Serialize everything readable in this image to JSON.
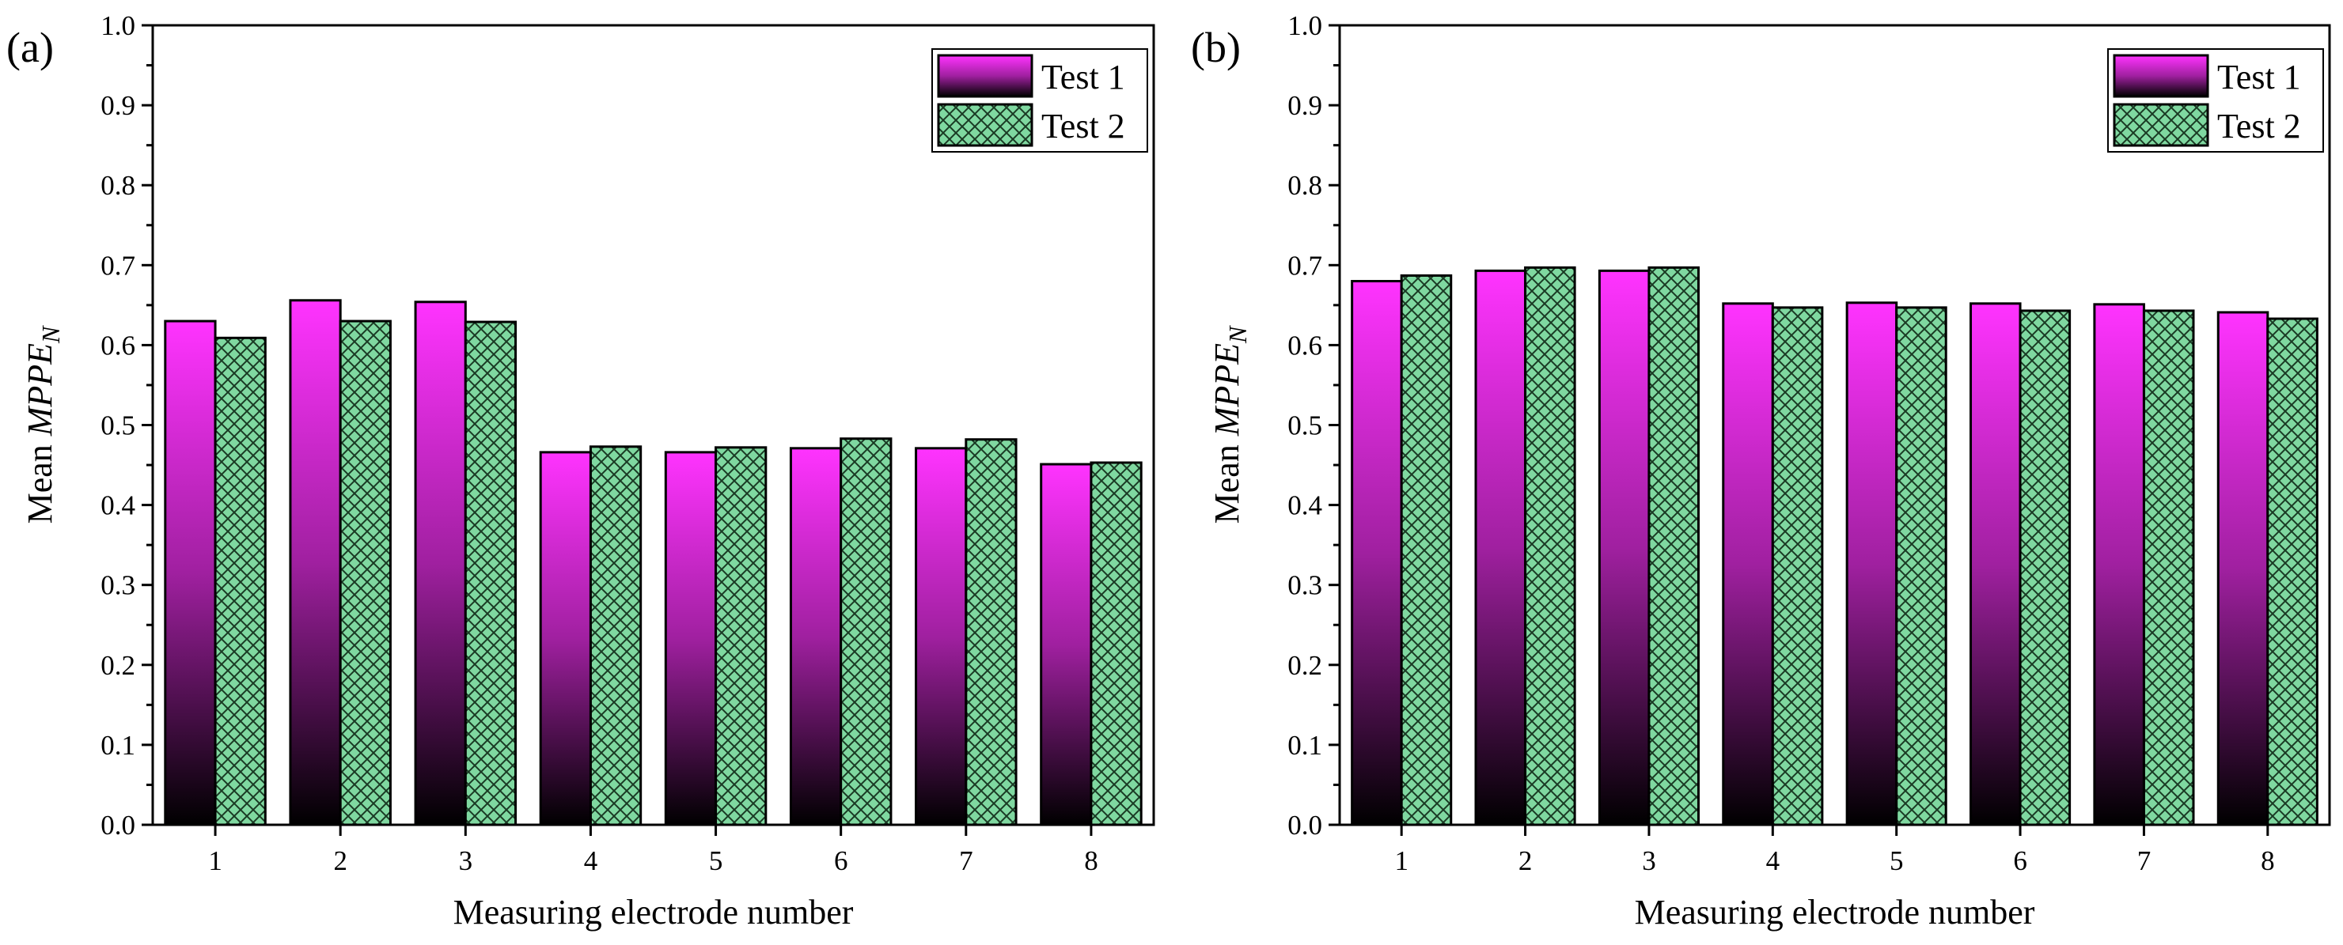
{
  "chart_data": [
    {
      "type": "bar",
      "panel_label": "(a)",
      "categories": [
        "1",
        "2",
        "3",
        "4",
        "5",
        "6",
        "7",
        "8"
      ],
      "series": [
        {
          "name": "Test 1",
          "values": [
            0.63,
            0.656,
            0.654,
            0.466,
            0.466,
            0.471,
            0.471,
            0.451
          ]
        },
        {
          "name": "Test 2",
          "values": [
            0.609,
            0.63,
            0.629,
            0.473,
            0.472,
            0.483,
            0.482,
            0.453
          ]
        }
      ],
      "xlabel": "Measuring electrode number",
      "ylabel_prefix": "Mean ",
      "ylabel_main": "MPPE",
      "ylabel_sub": "N",
      "ylim": [
        0.0,
        1.0
      ],
      "yticks": [
        "0.0",
        "0.1",
        "0.2",
        "0.3",
        "0.4",
        "0.5",
        "0.6",
        "0.7",
        "0.8",
        "0.9",
        "1.0"
      ],
      "legend_position": "top-right"
    },
    {
      "type": "bar",
      "panel_label": "(b)",
      "categories": [
        "1",
        "2",
        "3",
        "4",
        "5",
        "6",
        "7",
        "8"
      ],
      "series": [
        {
          "name": "Test 1",
          "values": [
            0.68,
            0.693,
            0.693,
            0.652,
            0.653,
            0.652,
            0.651,
            0.641
          ]
        },
        {
          "name": "Test 2",
          "values": [
            0.687,
            0.697,
            0.697,
            0.647,
            0.647,
            0.643,
            0.643,
            0.633
          ]
        }
      ],
      "xlabel": "Measuring electrode number",
      "ylabel_prefix": "Mean ",
      "ylabel_main": "MPPE",
      "ylabel_sub": "N",
      "ylim": [
        0.0,
        1.0
      ],
      "yticks": [
        "0.0",
        "0.1",
        "0.2",
        "0.3",
        "0.4",
        "0.5",
        "0.6",
        "0.7",
        "0.8",
        "0.9",
        "1.0"
      ],
      "legend_position": "top-right"
    }
  ],
  "colors": {
    "test1_top": "#ff33ff",
    "test1_mid": "#a020a0",
    "test1_bottom": "#000000",
    "test2_fill": "#7fd8a0",
    "test2_hatch": "#1a3a24",
    "axis": "#000000"
  }
}
